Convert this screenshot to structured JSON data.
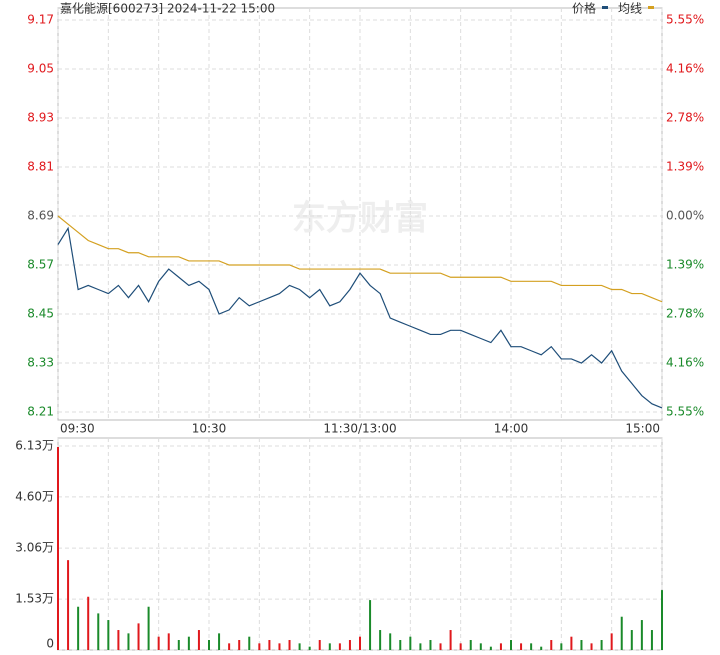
{
  "chart_data": [
    {
      "type": "line",
      "title": "嘉化能源[600273] 2024-11-22 15:00",
      "watermark": "东方财富",
      "x": [
        "09:30",
        "09:34",
        "09:38",
        "09:42",
        "09:46",
        "09:50",
        "09:54",
        "09:58",
        "10:02",
        "10:06",
        "10:10",
        "10:14",
        "10:18",
        "10:22",
        "10:26",
        "10:30",
        "10:34",
        "10:38",
        "10:42",
        "10:46",
        "10:50",
        "10:54",
        "10:58",
        "11:02",
        "11:06",
        "11:10",
        "11:14",
        "11:18",
        "11:22",
        "11:26",
        "11:30",
        "13:04",
        "13:08",
        "13:12",
        "13:16",
        "13:20",
        "13:24",
        "13:28",
        "13:32",
        "13:36",
        "13:40",
        "13:44",
        "13:48",
        "13:52",
        "13:56",
        "14:00",
        "14:04",
        "14:08",
        "14:12",
        "14:16",
        "14:20",
        "14:24",
        "14:28",
        "14:32",
        "14:36",
        "14:40",
        "14:44",
        "14:48",
        "14:52",
        "14:56",
        "15:00"
      ],
      "series": [
        {
          "name": "价格",
          "color": "#1f4e79",
          "values": [
            8.62,
            8.66,
            8.51,
            8.52,
            8.51,
            8.5,
            8.52,
            8.49,
            8.52,
            8.48,
            8.53,
            8.56,
            8.54,
            8.52,
            8.53,
            8.51,
            8.45,
            8.46,
            8.49,
            8.47,
            8.48,
            8.49,
            8.5,
            8.52,
            8.51,
            8.49,
            8.51,
            8.47,
            8.48,
            8.51,
            8.55,
            8.52,
            8.5,
            8.44,
            8.43,
            8.42,
            8.41,
            8.4,
            8.4,
            8.41,
            8.41,
            8.4,
            8.39,
            8.38,
            8.41,
            8.37,
            8.37,
            8.36,
            8.35,
            8.37,
            8.34,
            8.34,
            8.33,
            8.35,
            8.33,
            8.36,
            8.31,
            8.28,
            8.25,
            8.23,
            8.22
          ]
        },
        {
          "name": "均线",
          "color": "#d4a020",
          "values": [
            8.69,
            8.67,
            8.65,
            8.63,
            8.62,
            8.61,
            8.61,
            8.6,
            8.6,
            8.59,
            8.59,
            8.59,
            8.59,
            8.58,
            8.58,
            8.58,
            8.58,
            8.57,
            8.57,
            8.57,
            8.57,
            8.57,
            8.57,
            8.57,
            8.56,
            8.56,
            8.56,
            8.56,
            8.56,
            8.56,
            8.56,
            8.56,
            8.56,
            8.55,
            8.55,
            8.55,
            8.55,
            8.55,
            8.55,
            8.54,
            8.54,
            8.54,
            8.54,
            8.54,
            8.54,
            8.53,
            8.53,
            8.53,
            8.53,
            8.53,
            8.52,
            8.52,
            8.52,
            8.52,
            8.52,
            8.51,
            8.51,
            8.5,
            8.5,
            8.49,
            8.48
          ]
        }
      ],
      "xlim": [
        0,
        240
      ],
      "xticks": [
        {
          "value": 0,
          "label": "09:30"
        },
        {
          "value": 60,
          "label": "10:30"
        },
        {
          "value": 120,
          "label": "11:30/13:00"
        },
        {
          "value": 180,
          "label": "14:00"
        },
        {
          "value": 240,
          "label": "15:00"
        }
      ],
      "ylim": [
        8.21,
        9.17
      ],
      "yticks": [
        9.17,
        9.05,
        8.93,
        8.81,
        8.69,
        8.57,
        8.45,
        8.33,
        8.21
      ],
      "y2lim": [
        -5.55,
        5.55
      ],
      "y2ticks": [
        {
          "value": 5.55,
          "label": "5.55%"
        },
        {
          "value": 4.16,
          "label": "4.16%"
        },
        {
          "value": 2.78,
          "label": "2.78%"
        },
        {
          "value": 1.39,
          "label": "1.39%"
        },
        {
          "value": 0,
          "label": "0.00%"
        },
        {
          "value": -1.39,
          "label": "1.39%"
        },
        {
          "value": -2.78,
          "label": "2.78%"
        },
        {
          "value": -4.16,
          "label": "4.16%"
        },
        {
          "value": -5.55,
          "label": "5.55%"
        }
      ],
      "grid": true
    },
    {
      "type": "bar",
      "values": [
        6.1,
        2.7,
        1.3,
        1.6,
        1.1,
        0.9,
        0.6,
        0.5,
        0.8,
        1.3,
        0.4,
        0.5,
        0.3,
        0.4,
        0.6,
        0.3,
        0.5,
        0.2,
        0.3,
        0.4,
        0.2,
        0.3,
        0.2,
        0.3,
        0.2,
        0.1,
        0.3,
        0.2,
        0.2,
        0.3,
        0.4,
        1.5,
        0.6,
        0.5,
        0.3,
        0.4,
        0.2,
        0.3,
        0.2,
        0.6,
        0.2,
        0.3,
        0.2,
        0.1,
        0.2,
        0.3,
        0.2,
        0.2,
        0.1,
        0.3,
        0.2,
        0.4,
        0.3,
        0.2,
        0.3,
        0.5,
        1.0,
        0.6,
        0.9,
        0.6,
        1.8
      ],
      "up_color": "#e0181c",
      "down_color": "#1a8a2a",
      "ylim": [
        0,
        6.13
      ],
      "yticks": [
        {
          "value": 6.13,
          "label": "6.13万"
        },
        {
          "value": 4.6,
          "label": "4.60万"
        },
        {
          "value": 3.06,
          "label": "3.06万"
        },
        {
          "value": 1.53,
          "label": "1.53万"
        },
        0
      ],
      "grid": true
    }
  ]
}
